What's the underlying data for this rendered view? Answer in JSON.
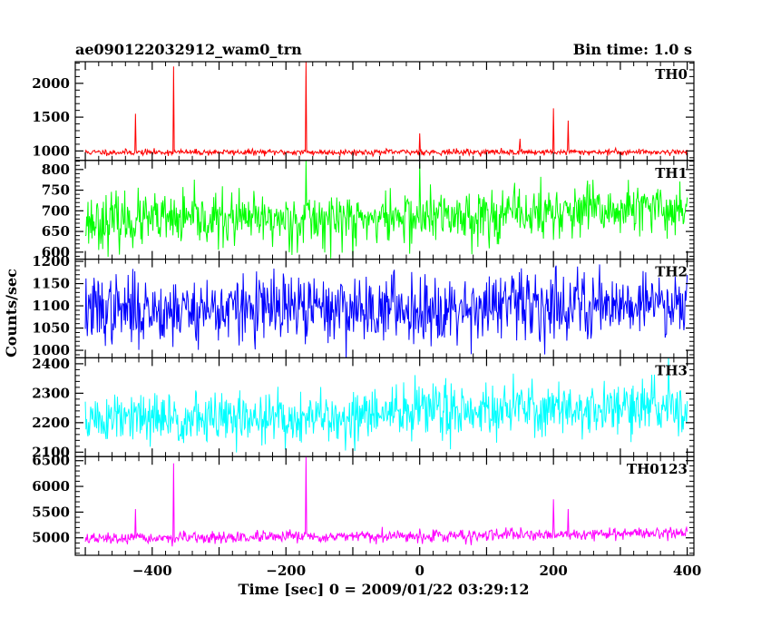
{
  "chart_data": {
    "type": "line",
    "title_left": "ae090122032912_wam0_trn",
    "title_right": "Bin time: 1.0 s",
    "xlabel": "Time [sec] 0 = 2009/01/22 03:29:12",
    "ylabel": "Counts/sec",
    "xlim": [
      -515,
      410
    ],
    "x_ticks": [
      -400,
      -200,
      0,
      200,
      400
    ],
    "x_tick_labels": [
      "−400",
      "−200",
      "0",
      "200",
      "400"
    ],
    "x_range": [
      -500,
      400
    ],
    "grid": false,
    "panels": [
      {
        "name": "TH0",
        "color": "#ff0000",
        "ylim": [
          860,
          2320
        ],
        "y_ticks": [
          1000,
          1500,
          2000
        ],
        "y_tick_labels": [
          "1000",
          "1500",
          "2000"
        ],
        "minor_step": 100,
        "base": [
          [
            -500,
            980
          ],
          [
            400,
            985
          ]
        ],
        "noise": 22,
        "seed": 11,
        "spikes": [
          [
            -425,
            1550
          ],
          [
            -368,
            2250
          ],
          [
            -170,
            2320
          ],
          [
            0,
            1260
          ],
          [
            200,
            1630
          ],
          [
            222,
            1450
          ],
          [
            150,
            1180
          ]
        ]
      },
      {
        "name": "TH1",
        "color": "#00ff00",
        "ylim": [
          583,
          822
        ],
        "y_ticks": [
          600,
          650,
          700,
          750,
          800
        ],
        "y_tick_labels": [
          "600",
          "650",
          "700",
          "750",
          "800"
        ],
        "minor_step": 10,
        "base": [
          [
            -500,
            675
          ],
          [
            -100,
            680
          ],
          [
            400,
            705
          ]
        ],
        "noise": 32,
        "seed": 23,
        "spikes": [
          [
            -170,
            822
          ],
          [
            0,
            815
          ],
          [
            -100,
            583
          ]
        ]
      },
      {
        "name": "TH2",
        "color": "#0000ff",
        "ylim": [
          983,
          1205
        ],
        "y_ticks": [
          1000,
          1050,
          1100,
          1150,
          1200
        ],
        "y_tick_labels": [
          "1000",
          "1050",
          "1100",
          "1150",
          "1200"
        ],
        "minor_step": 10,
        "base": [
          [
            -500,
            1090
          ],
          [
            0,
            1095
          ],
          [
            400,
            1110
          ]
        ],
        "noise": 38,
        "seed": 37,
        "spikes": []
      },
      {
        "name": "TH3",
        "color": "#00ffff",
        "ylim": [
          2085,
          2420
        ],
        "y_ticks": [
          2100,
          2200,
          2300,
          2400
        ],
        "y_tick_labels": [
          "2100",
          "2200",
          "2300",
          "2400"
        ],
        "minor_step": 20,
        "base": [
          [
            -500,
            2210
          ],
          [
            -100,
            2215
          ],
          [
            0,
            2245
          ],
          [
            400,
            2250
          ]
        ],
        "noise": 45,
        "seed": 51,
        "spikes": []
      },
      {
        "name": "TH0123",
        "color": "#ff00ff",
        "ylim": [
          4660,
          6580
        ],
        "y_ticks": [
          5000,
          5500,
          6000,
          6500
        ],
        "y_tick_labels": [
          "5000",
          "5500",
          "6000",
          "6500"
        ],
        "minor_step": 100,
        "base": [
          [
            -500,
            4980
          ],
          [
            0,
            5030
          ],
          [
            400,
            5100
          ]
        ],
        "noise": 55,
        "seed": 67,
        "spikes": [
          [
            -425,
            5560
          ],
          [
            -368,
            6450
          ],
          [
            -170,
            6580
          ],
          [
            0,
            5180
          ],
          [
            200,
            5750
          ],
          [
            222,
            5560
          ]
        ]
      }
    ]
  }
}
